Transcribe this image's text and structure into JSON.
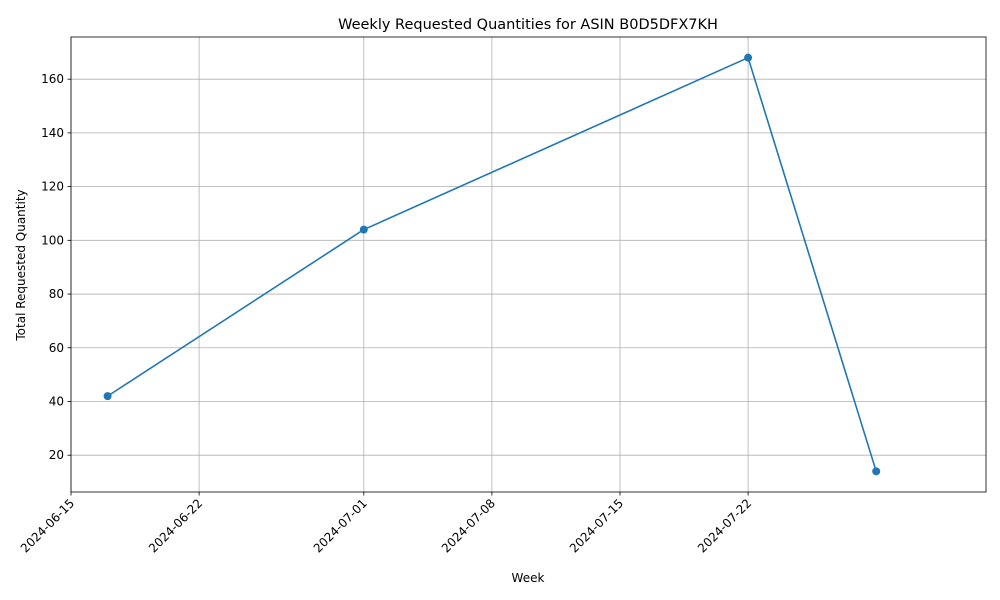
{
  "chart_data": {
    "type": "line",
    "title": "Weekly Requested Quantities for ASIN B0D5DFX7KH",
    "xlabel": "Week",
    "ylabel": "Total Requested Quantity",
    "x": [
      "2024-06-17",
      "2024-07-01",
      "2024-07-22",
      "2024-07-29"
    ],
    "values": [
      42,
      104,
      168,
      14
    ],
    "xlim": [
      "2024-06-15",
      "2024-08-04"
    ],
    "ylim": [
      6.3,
      175.7
    ],
    "x_ticks": [
      "2024-06-15",
      "2024-06-22",
      "2024-07-01",
      "2024-07-08",
      "2024-07-15",
      "2024-07-22"
    ],
    "y_ticks": [
      20,
      40,
      60,
      80,
      100,
      120,
      140,
      160
    ],
    "grid": true,
    "marker": "circle",
    "colors": {
      "line": "#1f77b4",
      "grid": "#b0b0b0",
      "axis": "#000000"
    }
  }
}
